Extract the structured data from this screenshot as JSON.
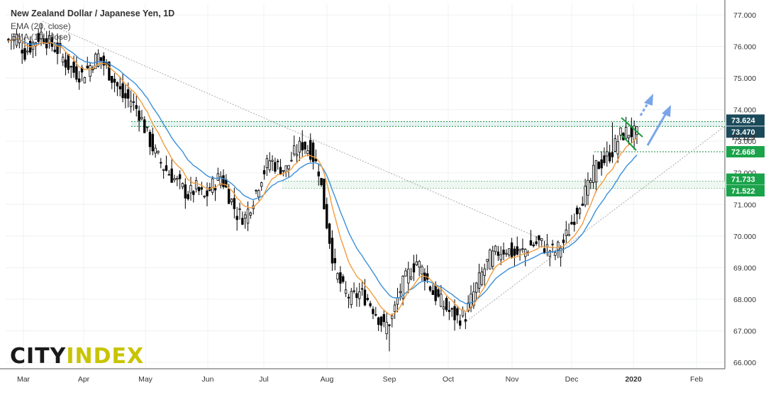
{
  "header": {
    "title": "New Zealand Dollar / Japanese Yen, 1D",
    "indicator_1": "EMA (20, close)",
    "indicator_2": "EMA (10, close)"
  },
  "logo": {
    "part1": "CITY",
    "part2": "INDEX"
  },
  "colors": {
    "up_candle": "#ffffff",
    "down_candle": "#000000",
    "ema_fast": "#f39c3c",
    "ema_slow": "#3a8fd9",
    "support_zone": "#1a8a3a",
    "price_tag_dark": "#1a4a5a",
    "price_tag_green": "#1aa34a",
    "arrow": "#7aa6e8",
    "flag": "#1a9a3a"
  },
  "chart_data": {
    "type": "candlestick",
    "y_range": [
      65.8,
      77.3
    ],
    "y_ticks": [
      "77.000",
      "76.000",
      "75.000",
      "74.000",
      "73.000",
      "72.000",
      "71.000",
      "70.000",
      "69.000",
      "68.000",
      "67.000",
      "66.000"
    ],
    "x_ticks": [
      "Mar",
      "Apr",
      "May",
      "Jun",
      "Jul",
      "Aug",
      "Sep",
      "Oct",
      "Nov",
      "Dec",
      "2020",
      "Feb"
    ],
    "price_labels": [
      {
        "value": 73.624,
        "text": "73.624",
        "style": "dark"
      },
      {
        "value": 73.47,
        "text": "73.470",
        "style": "dark"
      },
      {
        "value": 73.129,
        "text": "73.129",
        "style": "plain"
      },
      {
        "value": 72.668,
        "text": "72.668",
        "style": "green"
      },
      {
        "value": 71.733,
        "text": "71.733",
        "style": "green"
      },
      {
        "value": 71.522,
        "text": "71.522",
        "style": "green"
      }
    ],
    "resistance_zone": [
      73.47,
      73.624
    ],
    "support_lines": [
      72.668,
      71.733,
      71.522
    ],
    "close_path": [
      [
        0,
        76.2
      ],
      [
        3,
        76.3
      ],
      [
        6,
        75.8
      ],
      [
        9,
        76.1
      ],
      [
        12,
        76.4
      ],
      [
        15,
        76.1
      ],
      [
        18,
        75.9
      ],
      [
        21,
        75.5
      ],
      [
        24,
        75.2
      ],
      [
        27,
        75.1
      ],
      [
        30,
        75.4
      ],
      [
        33,
        75.7
      ],
      [
        36,
        75.3
      ],
      [
        39,
        74.9
      ],
      [
        42,
        74.4
      ],
      [
        45,
        74.3
      ],
      [
        48,
        73.9
      ],
      [
        51,
        73.2
      ],
      [
        54,
        72.6
      ],
      [
        57,
        72.2
      ],
      [
        60,
        71.9
      ],
      [
        63,
        71.6
      ],
      [
        66,
        71.3
      ],
      [
        69,
        71.5
      ],
      [
        72,
        71.2
      ],
      [
        75,
        71.6
      ],
      [
        78,
        71.9
      ],
      [
        81,
        71.3
      ],
      [
        84,
        70.7
      ],
      [
        87,
        70.6
      ],
      [
        90,
        71.2
      ],
      [
        93,
        71.9
      ],
      [
        96,
        72.4
      ],
      [
        99,
        72.2
      ],
      [
        102,
        72.1
      ],
      [
        105,
        72.6
      ],
      [
        108,
        72.9
      ],
      [
        111,
        72.7
      ],
      [
        114,
        72.1
      ],
      [
        117,
        70.4
      ],
      [
        120,
        68.9
      ],
      [
        123,
        68.3
      ],
      [
        126,
        68.0
      ],
      [
        129,
        68.2
      ],
      [
        132,
        68.0
      ],
      [
        135,
        67.6
      ],
      [
        138,
        67.1
      ],
      [
        141,
        67.4
      ],
      [
        144,
        68.3
      ],
      [
        147,
        68.8
      ],
      [
        150,
        69.2
      ],
      [
        153,
        68.8
      ],
      [
        156,
        68.2
      ],
      [
        159,
        67.9
      ],
      [
        162,
        67.6
      ],
      [
        165,
        67.4
      ],
      [
        168,
        67.5
      ],
      [
        171,
        68.2
      ],
      [
        174,
        68.8
      ],
      [
        177,
        69.3
      ],
      [
        180,
        69.5
      ],
      [
        183,
        69.6
      ],
      [
        186,
        69.4
      ],
      [
        189,
        69.5
      ],
      [
        192,
        69.7
      ],
      [
        195,
        69.8
      ],
      [
        198,
        69.6
      ],
      [
        201,
        69.5
      ],
      [
        204,
        69.8
      ],
      [
        207,
        70.4
      ],
      [
        210,
        71.1
      ],
      [
        213,
        71.5
      ],
      [
        216,
        72.2
      ],
      [
        219,
        72.4
      ],
      [
        222,
        72.7
      ],
      [
        225,
        73.2
      ],
      [
        228,
        73.3
      ],
      [
        231,
        73.2
      ]
    ],
    "wick_extremes": [
      {
        "i": 140,
        "low": 66.35
      },
      {
        "i": 108,
        "high": 73.35
      },
      {
        "i": 222,
        "high": 73.6
      }
    ]
  }
}
